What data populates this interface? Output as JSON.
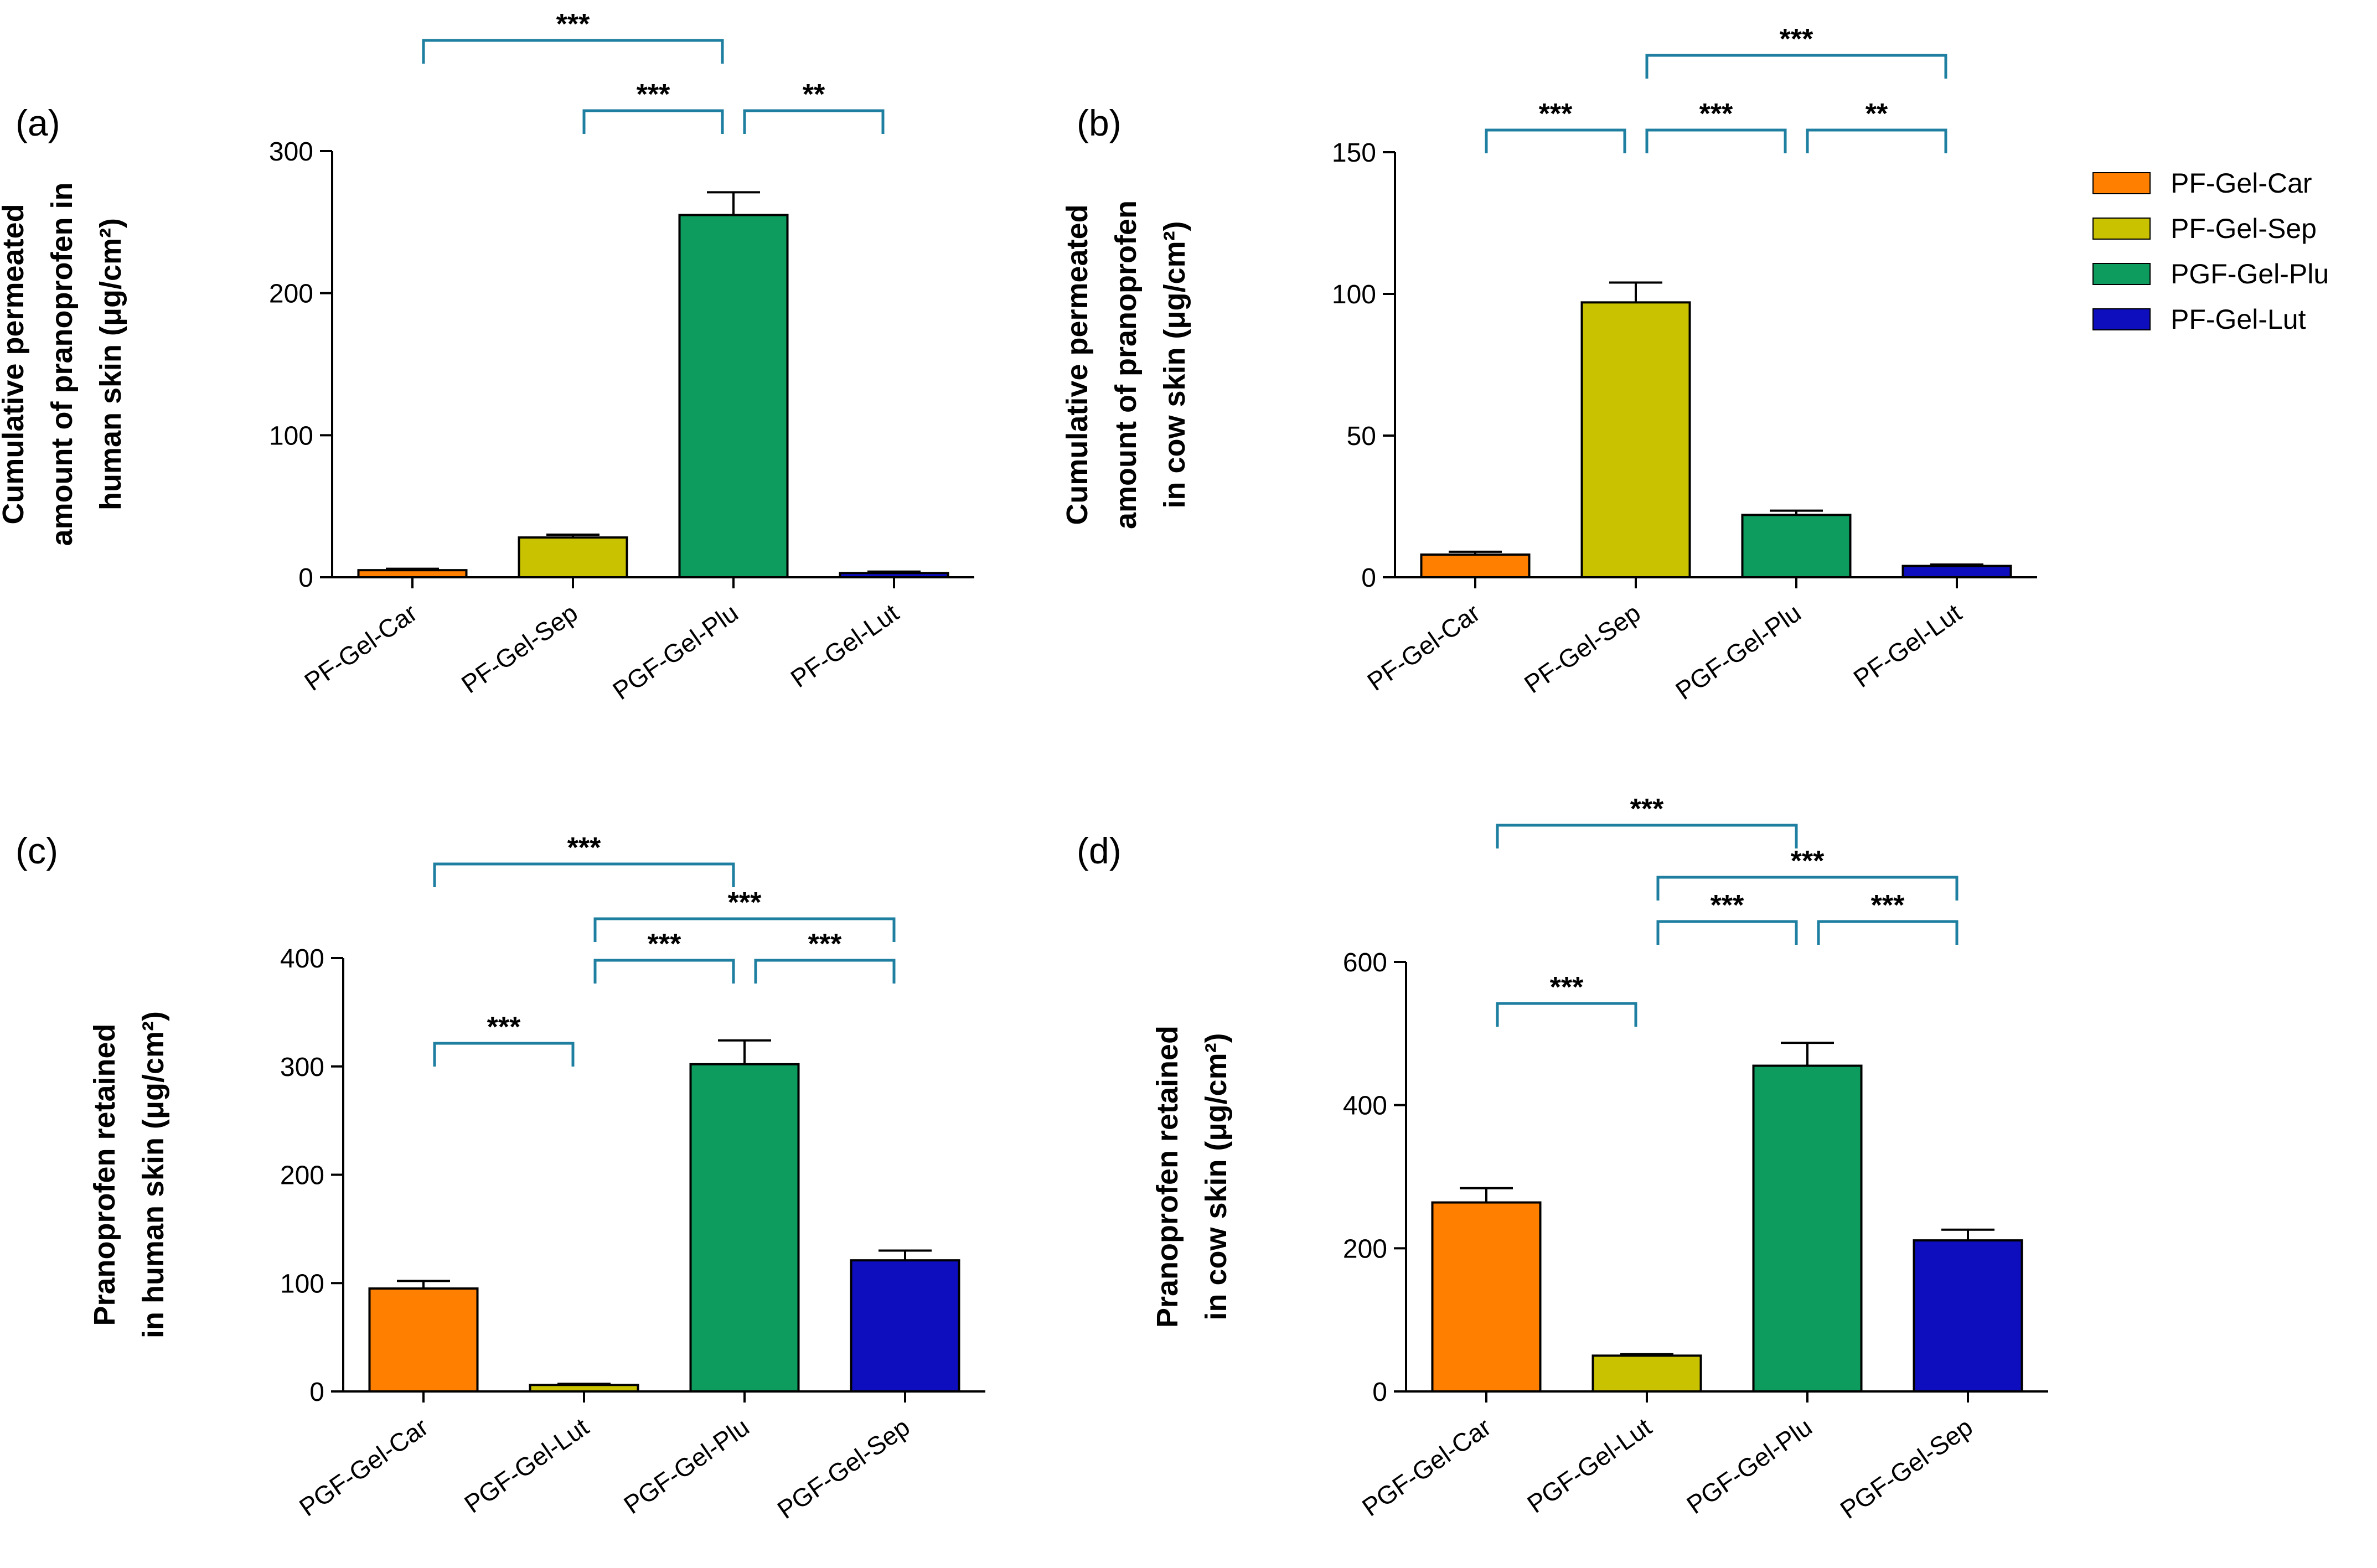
{
  "figure": {
    "legend": [
      {
        "label": "PF-Gel-Car",
        "color": "#FF7F00"
      },
      {
        "label": "PF-Gel-Sep",
        "color": "#C8C200"
      },
      {
        "label": "PGF-Gel-Plu",
        "color": "#0D9B5E"
      },
      {
        "label": "PF-Gel-Lut",
        "color": "#0E0EBF"
      }
    ]
  },
  "chart_data": [
    {
      "panel": "(a)",
      "type": "bar",
      "title": "",
      "ylabel": [
        "Cumulative permeated",
        "amount of pranoprofen in",
        "human skin (μg/cm²)"
      ],
      "xlabel": "",
      "ylim": [
        0,
        300
      ],
      "yticks": [
        0,
        100,
        200,
        300
      ],
      "grid": false,
      "categories": [
        "PF-Gel-Car",
        "PF-Gel-Sep",
        "PGF-Gel-Plu",
        "PF-Gel-Lut"
      ],
      "values": [
        5,
        28,
        255,
        3
      ],
      "errors": [
        1,
        2,
        16,
        1
      ],
      "colors": [
        "#FF7F00",
        "#C8C200",
        "#0D9B5E",
        "#0E0EBF"
      ],
      "significance": [
        {
          "from": 0,
          "to": 2,
          "label": "***",
          "level": 3
        },
        {
          "from": 1,
          "to": 2,
          "label": "***",
          "level": 1
        },
        {
          "from": 2,
          "to": 3,
          "label": "**",
          "level": 1
        }
      ]
    },
    {
      "panel": "(b)",
      "type": "bar",
      "title": "",
      "ylabel": [
        "Cumulative permeated",
        "amount of pranoprofen",
        "in cow skin (μg/cm²)"
      ],
      "xlabel": "",
      "ylim": [
        0,
        150
      ],
      "yticks": [
        0,
        50,
        100,
        150
      ],
      "grid": false,
      "categories": [
        "PF-Gel-Car",
        "PF-Gel-Sep",
        "PGF-Gel-Plu",
        "PF-Gel-Lut"
      ],
      "values": [
        8,
        97,
        22,
        4
      ],
      "errors": [
        1,
        7,
        1.5,
        0.5
      ],
      "colors": [
        "#FF7F00",
        "#C8C200",
        "#0D9B5E",
        "#0E0EBF"
      ],
      "significance": [
        {
          "from": 1,
          "to": 3,
          "label": "***",
          "level": 3
        },
        {
          "from": 0,
          "to": 1,
          "label": "***",
          "level": 1
        },
        {
          "from": 1,
          "to": 2,
          "label": "***",
          "level": 1
        },
        {
          "from": 2,
          "to": 3,
          "label": "**",
          "level": 1
        }
      ]
    },
    {
      "panel": "(c)",
      "type": "bar",
      "title": "",
      "ylabel": [
        "Pranoprofen retained",
        "in human skin (μg/cm²)"
      ],
      "xlabel": "",
      "ylim": [
        0,
        400
      ],
      "yticks": [
        0,
        100,
        200,
        300,
        400
      ],
      "grid": false,
      "categories": [
        "PGF-Gel-Car",
        "PGF-Gel-Lut",
        "PGF-Gel-Plu",
        "PGF-Gel-Sep"
      ],
      "values": [
        95,
        6,
        302,
        121
      ],
      "errors": [
        7,
        1,
        22,
        9
      ],
      "colors": [
        "#FF7F00",
        "#C8C200",
        "#0D9B5E",
        "#0E0EBF"
      ],
      "significance": [
        {
          "from": 0,
          "to": 2,
          "label": "***",
          "level": 4
        },
        {
          "from": 1,
          "to": 3,
          "label": "***",
          "level": 3
        },
        {
          "from": 1,
          "to": 2,
          "label": "***",
          "level": 2
        },
        {
          "from": 2,
          "to": 3,
          "label": "***",
          "level": 2
        },
        {
          "from": 0,
          "to": 1,
          "label": "***",
          "level": 1
        }
      ]
    },
    {
      "panel": "(d)",
      "type": "bar",
      "title": "",
      "ylabel": [
        "Pranoprofen retained",
        "in cow skin (μg/cm²)"
      ],
      "xlabel": "",
      "ylim": [
        0,
        600
      ],
      "yticks": [
        0,
        200,
        400,
        600
      ],
      "grid": false,
      "categories": [
        "PGF-Gel-Car",
        "PGF-Gel-Lut",
        "PGF-Gel-Plu",
        "PGF-Gel-Sep"
      ],
      "values": [
        264,
        50,
        455,
        211
      ],
      "errors": [
        20,
        2,
        32,
        15
      ],
      "colors": [
        "#FF7F00",
        "#C8C200",
        "#0D9B5E",
        "#0E0EBF"
      ],
      "significance": [
        {
          "from": 0,
          "to": 2,
          "label": "***",
          "level": 4
        },
        {
          "from": 1,
          "to": 3,
          "label": "***",
          "level": 3
        },
        {
          "from": 1,
          "to": 2,
          "label": "***",
          "level": 2
        },
        {
          "from": 2,
          "to": 3,
          "label": "***",
          "level": 2
        },
        {
          "from": 0,
          "to": 1,
          "label": "***",
          "level": 1
        }
      ]
    }
  ]
}
